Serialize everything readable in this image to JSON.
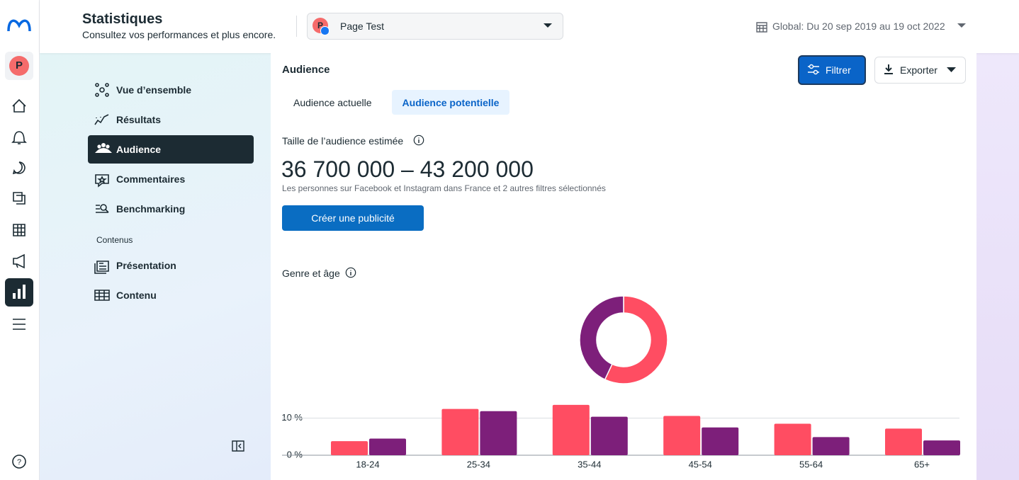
{
  "header": {
    "title": "Statistiques",
    "subtitle": "Consultez vos performances et plus encore.",
    "page_initial": "P",
    "page_selector": "Page Test",
    "date_range": "Global: Du 20 sep 2019 au 19 oct 2022"
  },
  "profile_initial": "P",
  "nav": {
    "items": [
      "Vue d’ensemble",
      "Résultats",
      "Audience",
      "Commentaires",
      "Benchmarking"
    ],
    "section": "Contenus",
    "section_items": [
      "Présentation",
      "Contenu"
    ]
  },
  "audience": {
    "title": "Audience",
    "filter": "Filtrer",
    "export": "Exporter",
    "tabs": [
      "Audience actuelle",
      "Audience potentielle"
    ],
    "size_label": "Taille de l’audience estimée",
    "size_value": "36 700 000 – 43 200 000",
    "size_caption": "Les personnes sur Facebook et Instagram dans France et 2 autres filtres sélectionnés",
    "cta": "Créer une publicité",
    "gender_age": "Genre et âge"
  },
  "chart_data": [
    {
      "type": "pie",
      "values": [
        57,
        43
      ],
      "colors": [
        "#ff4d62",
        "#7d1f7a"
      ],
      "donut": true
    },
    {
      "type": "bar",
      "categories": [
        "18-24",
        "25-34",
        "35-44",
        "45-54",
        "55-64",
        "65+"
      ],
      "series": [
        {
          "color": "#ff4d62",
          "values": [
            3.8,
            12.5,
            13.6,
            10.6,
            8.5,
            7.2
          ]
        },
        {
          "color": "#7d1f7a",
          "values": [
            4.5,
            11.9,
            10.4,
            7.5,
            4.9,
            4.0
          ]
        }
      ],
      "ylim": [
        0,
        15
      ],
      "yticks": [
        {
          "value": 0,
          "label": "0 %"
        },
        {
          "value": 10,
          "label": "10 %"
        }
      ],
      "grid": true
    }
  ]
}
